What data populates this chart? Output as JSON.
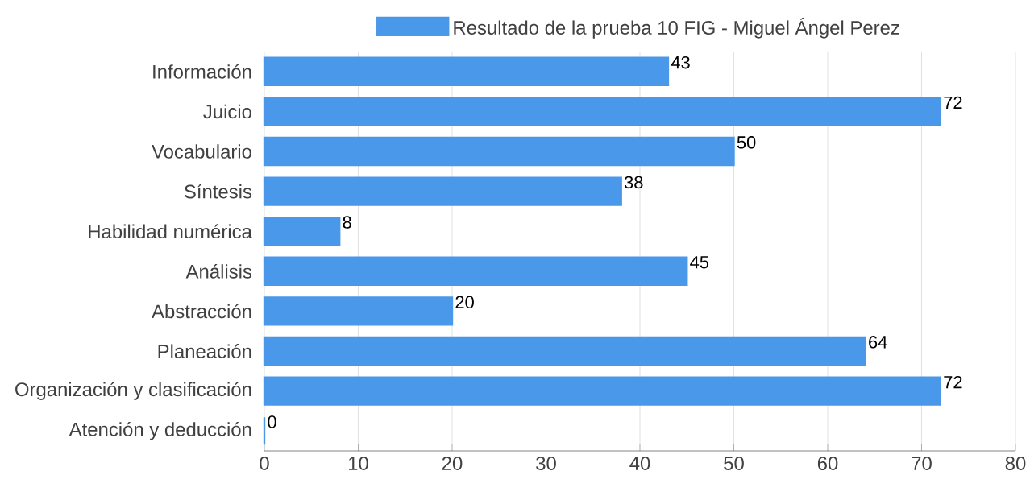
{
  "chart_data": {
    "type": "bar",
    "orientation": "horizontal",
    "categories": [
      "Información",
      "Juicio",
      "Vocabulario",
      "Síntesis",
      "Habilidad numérica",
      "Análisis",
      "Abstracción",
      "Planeación",
      "Organización y clasificación",
      "Atención y deducción"
    ],
    "series": [
      {
        "name": "Resultado de la prueba 10 FIG - Miguel Ángel Perez",
        "color": "#4a98e9",
        "values": [
          43,
          72,
          50,
          38,
          8,
          45,
          20,
          64,
          72,
          0
        ]
      }
    ],
    "xlim": [
      0,
      80
    ],
    "xticks": [
      0,
      10,
      20,
      30,
      40,
      50,
      60,
      70,
      80
    ],
    "grid": "x",
    "legend": "top",
    "data_labels": true
  }
}
